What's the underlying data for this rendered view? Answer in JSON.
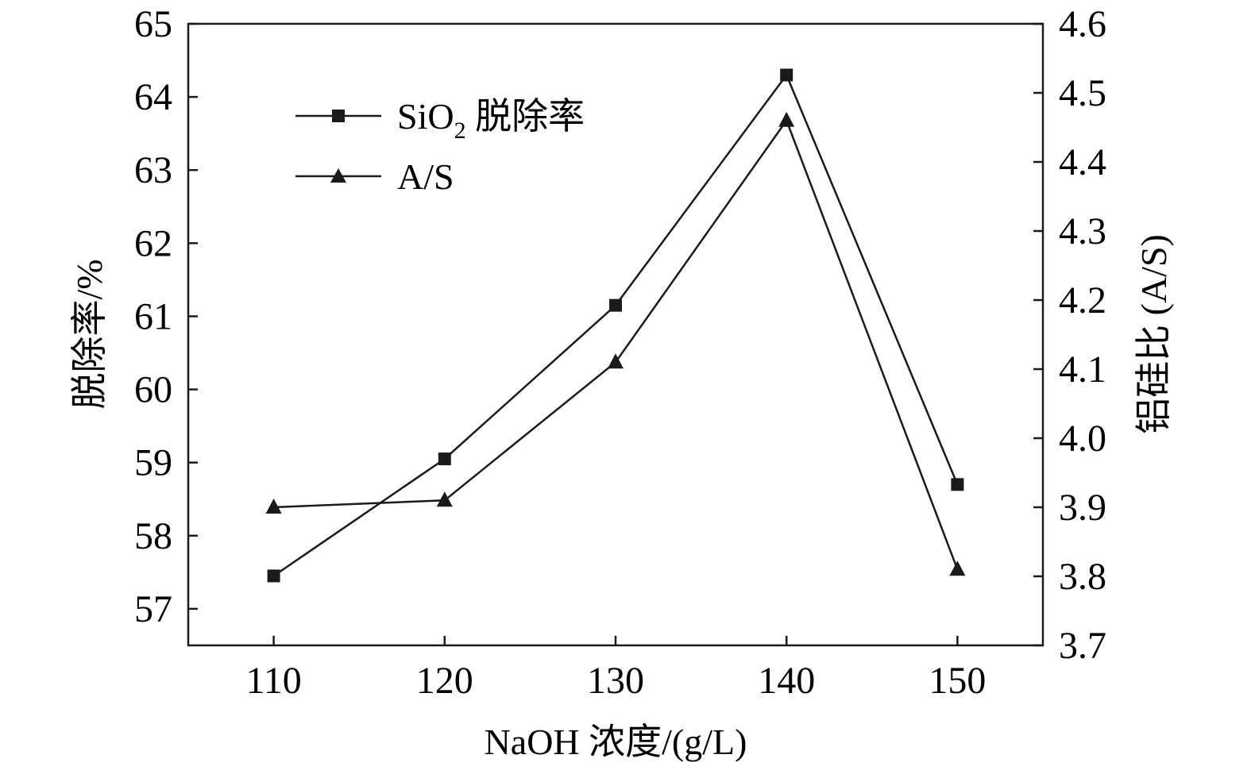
{
  "chart_data": {
    "type": "line",
    "xlabel": "NaOH 浓度/(g/L)",
    "ylabel_left": "脱除率/%",
    "ylabel_right": "铝硅比 (A/S)",
    "x": [
      110,
      120,
      130,
      140,
      150
    ],
    "xlim": [
      105,
      155
    ],
    "xticks": [
      "110",
      "120",
      "130",
      "140",
      "150"
    ],
    "ylim_left": [
      56.5,
      65
    ],
    "yticks_left": [
      "57",
      "58",
      "59",
      "60",
      "61",
      "62",
      "63",
      "64",
      "65"
    ],
    "ylim_right": [
      3.7,
      4.6
    ],
    "yticks_right": [
      "3.7",
      "3.8",
      "3.9",
      "4.0",
      "4.1",
      "4.2",
      "4.3",
      "4.4",
      "4.5",
      "4.6"
    ],
    "legend_position": "upper-left",
    "series": [
      {
        "key": "sio2",
        "axis": "left",
        "marker": "square",
        "legend_main": "SiO",
        "legend_sub": "2",
        "legend_rest": " 脱除率",
        "values": [
          57.45,
          59.05,
          61.15,
          64.3,
          58.7
        ]
      },
      {
        "key": "as",
        "axis": "right",
        "marker": "triangle",
        "legend_main": "A/S",
        "legend_sub": "",
        "legend_rest": "",
        "values": [
          3.9,
          3.91,
          4.11,
          4.46,
          3.81
        ]
      }
    ],
    "line_color": "#1a1a1a",
    "grid": false
  }
}
